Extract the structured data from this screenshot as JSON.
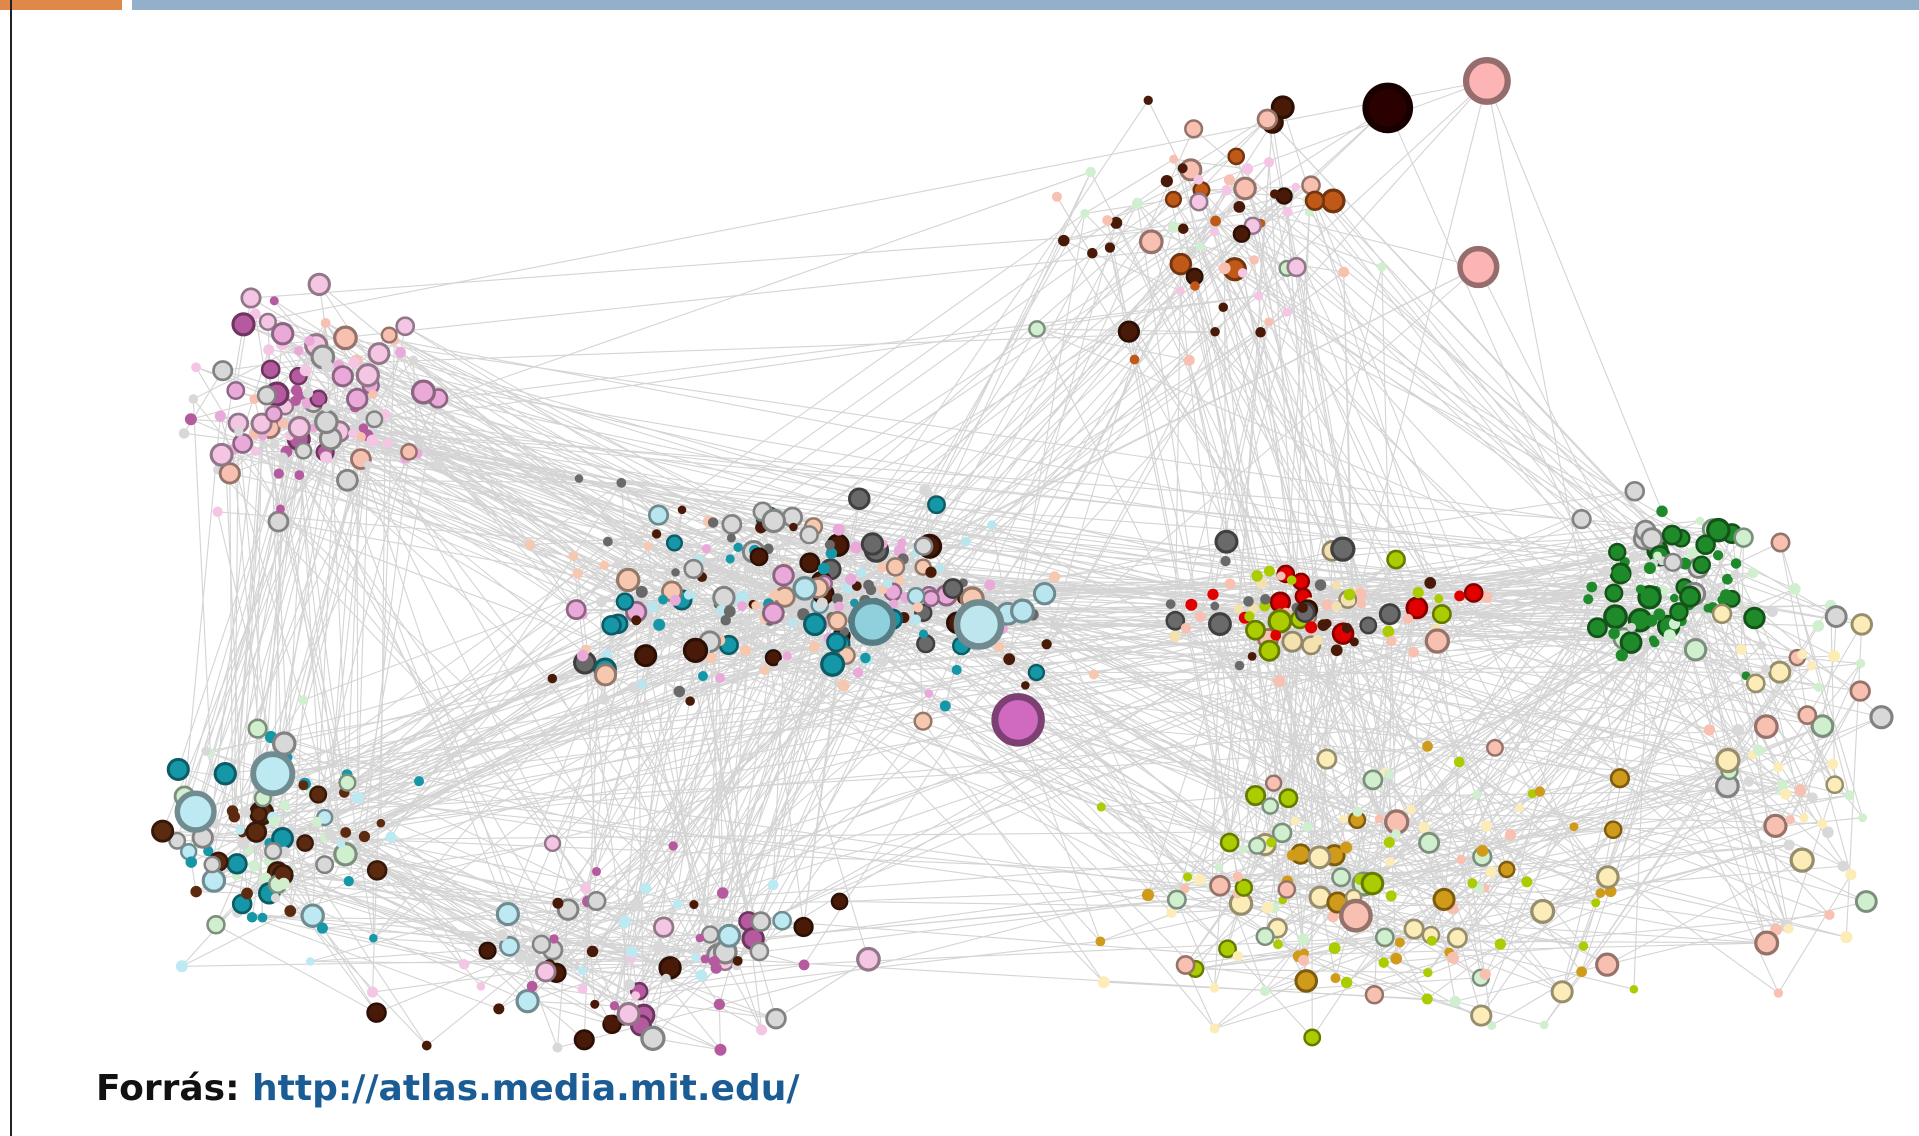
{
  "caption": {
    "label": "Forrás:",
    "link": "http://atlas.media.mit.edu/"
  }
}
